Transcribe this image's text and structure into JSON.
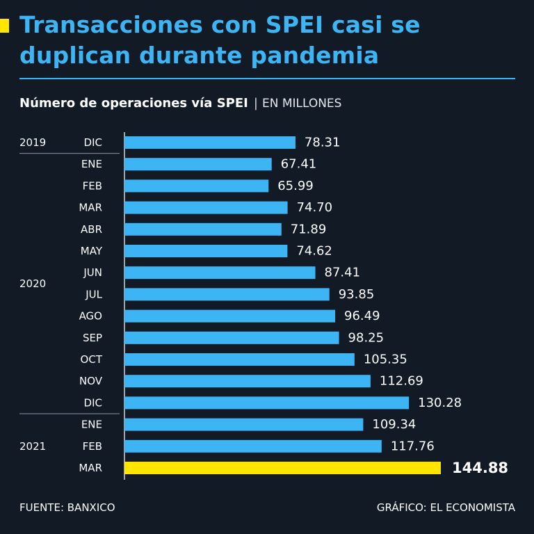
{
  "title": "Transacciones con SPEI casi se duplican durante pandemia",
  "subtitle": "Número de operaciones vía SPEI",
  "unit": "EN MILLONES",
  "source": "FUENTE: BANXICO",
  "credit": "GRÁFICO: EL ECONOMISTA",
  "colors": {
    "background": "#121a26",
    "accent": "#3db5f5",
    "highlight": "#ffe500"
  },
  "chart_data": {
    "type": "bar",
    "orientation": "horizontal",
    "title": "Número de operaciones vía SPEI",
    "unit": "EN MILLONES",
    "year_groups": [
      {
        "year": "2019",
        "months": [
          "DIC"
        ]
      },
      {
        "year": "2020",
        "months": [
          "ENE",
          "FEB",
          "MAR",
          "ABR",
          "MAY",
          "JUN",
          "JUL",
          "AGO",
          "SEP",
          "OCT",
          "NOV",
          "DIC"
        ]
      },
      {
        "year": "2021",
        "months": [
          "ENE",
          "FEB",
          "MAR"
        ]
      }
    ],
    "categories": [
      "DIC",
      "ENE",
      "FEB",
      "MAR",
      "ABR",
      "MAY",
      "JUN",
      "JUL",
      "AGO",
      "SEP",
      "OCT",
      "NOV",
      "DIC",
      "ENE",
      "FEB",
      "MAR"
    ],
    "values": [
      78.31,
      67.41,
      65.99,
      74.7,
      71.89,
      74.62,
      87.41,
      93.85,
      96.49,
      98.25,
      105.35,
      112.69,
      130.28,
      109.34,
      117.76,
      144.88
    ],
    "value_labels": [
      "78.31",
      "67.41",
      "65.99",
      "74.70",
      "71.89",
      "74.62",
      "87.41",
      "93.85",
      "96.49",
      "98.25",
      "105.35",
      "112.69",
      "130.28",
      "109.34",
      "117.76",
      "144.88"
    ],
    "highlighted": "MAR 2021",
    "xlim": [
      0,
      150
    ],
    "grid": false,
    "legend": "none"
  }
}
